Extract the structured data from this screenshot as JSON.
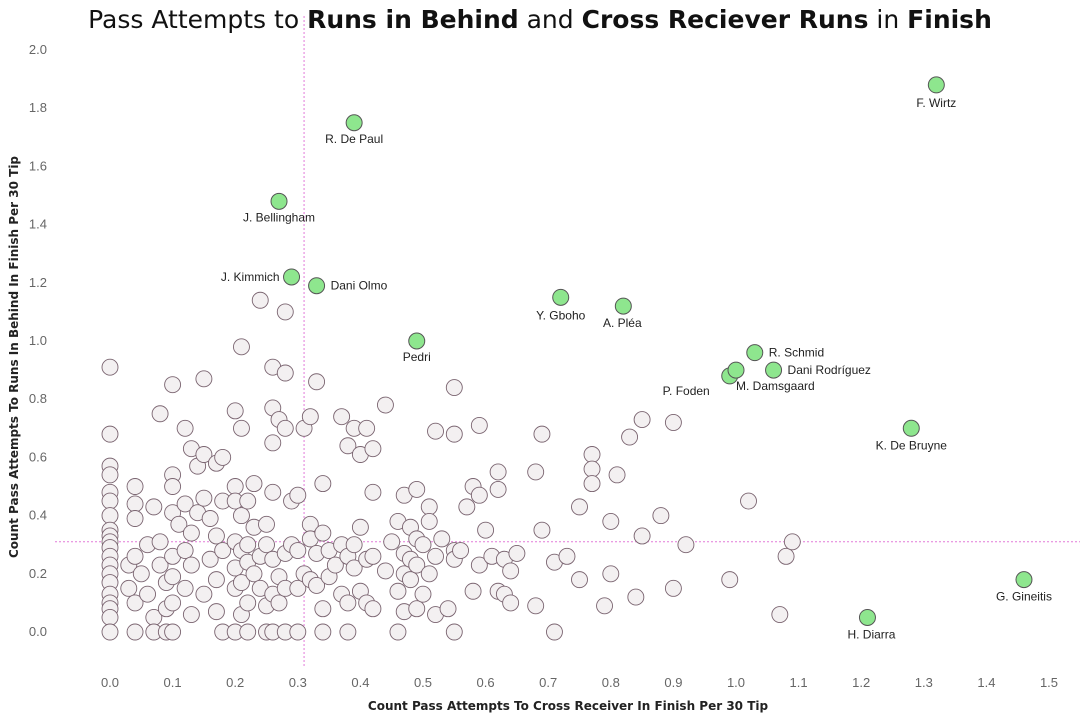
{
  "chart_data": {
    "type": "scatter",
    "title_parts": [
      {
        "text": "Pass Attempts to ",
        "bold": false
      },
      {
        "text": "Runs in Behind",
        "bold": true
      },
      {
        "text": " and ",
        "bold": false
      },
      {
        "text": "Cross Reciever Runs",
        "bold": true
      },
      {
        "text": " in ",
        "bold": false
      },
      {
        "text": "Finish",
        "bold": true
      }
    ],
    "xlabel": "Count Pass Attempts To Cross Receiver In Finish Per 30 Tip",
    "ylabel": "Count Pass Attempts To Runs In Behind In Finish Per 30 Tip",
    "xlim": [
      -0.05,
      1.55
    ],
    "ylim": [
      -0.1,
      2.05
    ],
    "xticks": [
      "0.0",
      "0.1",
      "0.2",
      "0.3",
      "0.4",
      "0.5",
      "0.6",
      "0.7",
      "0.8",
      "0.9",
      "1.0",
      "1.1",
      "1.2",
      "1.3",
      "1.4",
      "1.5"
    ],
    "yticks": [
      "0.0",
      "0.2",
      "0.4",
      "0.6",
      "0.8",
      "1.0",
      "1.2",
      "1.4",
      "1.6",
      "1.8",
      "2.0"
    ],
    "reference_lines": {
      "x": 0.31,
      "y": 0.31
    },
    "colors": {
      "highlight": "#8ee68e",
      "base": "#f3f0f1",
      "stroke": "#7a6470",
      "ref": "#e27ad8"
    },
    "highlighted": [
      {
        "name": "F. Wirtz",
        "x": 1.32,
        "y": 1.88
      },
      {
        "name": "R. De Paul",
        "x": 0.39,
        "y": 1.75
      },
      {
        "name": "J. Bellingham",
        "x": 0.27,
        "y": 1.48
      },
      {
        "name": "J. Kimmich",
        "x": 0.29,
        "y": 1.22
      },
      {
        "name": "Dani Olmo",
        "x": 0.33,
        "y": 1.19
      },
      {
        "name": "Y. Gboho",
        "x": 0.72,
        "y": 1.15
      },
      {
        "name": "A. Pléa",
        "x": 0.82,
        "y": 1.12
      },
      {
        "name": "Pedri",
        "x": 0.49,
        "y": 1.0
      },
      {
        "name": "R. Schmid",
        "x": 1.03,
        "y": 0.96
      },
      {
        "name": "Dani Rodríguez",
        "x": 1.06,
        "y": 0.9
      },
      {
        "name": "P. Foden",
        "x": 0.99,
        "y": 0.88
      },
      {
        "name": "M. Damsgaard",
        "x": 1.0,
        "y": 0.9
      },
      {
        "name": "K. De Bruyne",
        "x": 1.28,
        "y": 0.7
      },
      {
        "name": "G. Gineitis",
        "x": 1.46,
        "y": 0.18
      },
      {
        "name": "H. Diarra",
        "x": 1.21,
        "y": 0.05
      }
    ],
    "others": [
      [
        0.0,
        0.91
      ],
      [
        0.0,
        0.68
      ],
      [
        0.0,
        0.57
      ],
      [
        0.0,
        0.54
      ],
      [
        0.0,
        0.48
      ],
      [
        0.0,
        0.45
      ],
      [
        0.0,
        0.4
      ],
      [
        0.0,
        0.35
      ],
      [
        0.0,
        0.33
      ],
      [
        0.0,
        0.31
      ],
      [
        0.0,
        0.29
      ],
      [
        0.0,
        0.26
      ],
      [
        0.0,
        0.23
      ],
      [
        0.0,
        0.2
      ],
      [
        0.0,
        0.17
      ],
      [
        0.0,
        0.13
      ],
      [
        0.0,
        0.1
      ],
      [
        0.0,
        0.08
      ],
      [
        0.0,
        0.05
      ],
      [
        0.0,
        0.0
      ],
      [
        0.03,
        0.23
      ],
      [
        0.03,
        0.15
      ],
      [
        0.04,
        0.5
      ],
      [
        0.04,
        0.44
      ],
      [
        0.04,
        0.39
      ],
      [
        0.04,
        0.26
      ],
      [
        0.04,
        0.1
      ],
      [
        0.04,
        0.0
      ],
      [
        0.05,
        0.2
      ],
      [
        0.06,
        0.3
      ],
      [
        0.06,
        0.13
      ],
      [
        0.07,
        0.43
      ],
      [
        0.07,
        0.05
      ],
      [
        0.07,
        0.0
      ],
      [
        0.08,
        0.75
      ],
      [
        0.08,
        0.31
      ],
      [
        0.08,
        0.23
      ],
      [
        0.09,
        0.17
      ],
      [
        0.09,
        0.08
      ],
      [
        0.09,
        0.0
      ],
      [
        0.1,
        0.85
      ],
      [
        0.1,
        0.54
      ],
      [
        0.1,
        0.5
      ],
      [
        0.1,
        0.41
      ],
      [
        0.1,
        0.26
      ],
      [
        0.1,
        0.19
      ],
      [
        0.1,
        0.1
      ],
      [
        0.1,
        0.0
      ],
      [
        0.11,
        0.37
      ],
      [
        0.12,
        0.7
      ],
      [
        0.12,
        0.44
      ],
      [
        0.12,
        0.28
      ],
      [
        0.12,
        0.15
      ],
      [
        0.13,
        0.63
      ],
      [
        0.13,
        0.34
      ],
      [
        0.13,
        0.23
      ],
      [
        0.13,
        0.06
      ],
      [
        0.14,
        0.57
      ],
      [
        0.14,
        0.41
      ],
      [
        0.15,
        0.87
      ],
      [
        0.15,
        0.61
      ],
      [
        0.15,
        0.46
      ],
      [
        0.15,
        0.13
      ],
      [
        0.16,
        0.39
      ],
      [
        0.16,
        0.25
      ],
      [
        0.17,
        0.58
      ],
      [
        0.17,
        0.33
      ],
      [
        0.17,
        0.18
      ],
      [
        0.17,
        0.07
      ],
      [
        0.18,
        0.6
      ],
      [
        0.18,
        0.45
      ],
      [
        0.18,
        0.28
      ],
      [
        0.18,
        0.0
      ],
      [
        0.2,
        0.76
      ],
      [
        0.2,
        0.5
      ],
      [
        0.2,
        0.45
      ],
      [
        0.2,
        0.31
      ],
      [
        0.2,
        0.22
      ],
      [
        0.2,
        0.15
      ],
      [
        0.2,
        0.0
      ],
      [
        0.21,
        0.98
      ],
      [
        0.21,
        0.7
      ],
      [
        0.21,
        0.4
      ],
      [
        0.21,
        0.28
      ],
      [
        0.21,
        0.17
      ],
      [
        0.21,
        0.06
      ],
      [
        0.22,
        0.45
      ],
      [
        0.22,
        0.3
      ],
      [
        0.22,
        0.24
      ],
      [
        0.22,
        0.1
      ],
      [
        0.22,
        0.0
      ],
      [
        0.23,
        0.51
      ],
      [
        0.23,
        0.36
      ],
      [
        0.23,
        0.2
      ],
      [
        0.24,
        1.14
      ],
      [
        0.24,
        0.26
      ],
      [
        0.24,
        0.15
      ],
      [
        0.25,
        0.37
      ],
      [
        0.25,
        0.3
      ],
      [
        0.25,
        0.09
      ],
      [
        0.25,
        0.0
      ],
      [
        0.26,
        0.91
      ],
      [
        0.26,
        0.77
      ],
      [
        0.26,
        0.65
      ],
      [
        0.26,
        0.48
      ],
      [
        0.26,
        0.25
      ],
      [
        0.26,
        0.13
      ],
      [
        0.26,
        0.0
      ],
      [
        0.27,
        0.73
      ],
      [
        0.27,
        0.19
      ],
      [
        0.27,
        0.1
      ],
      [
        0.28,
        1.1
      ],
      [
        0.28,
        0.89
      ],
      [
        0.28,
        0.7
      ],
      [
        0.28,
        0.27
      ],
      [
        0.28,
        0.15
      ],
      [
        0.28,
        0.0
      ],
      [
        0.29,
        0.45
      ],
      [
        0.29,
        0.3
      ],
      [
        0.3,
        0.47
      ],
      [
        0.3,
        0.28
      ],
      [
        0.3,
        0.15
      ],
      [
        0.3,
        0.0
      ],
      [
        0.31,
        0.7
      ],
      [
        0.31,
        0.2
      ],
      [
        0.32,
        0.74
      ],
      [
        0.32,
        0.37
      ],
      [
        0.32,
        0.32
      ],
      [
        0.32,
        0.18
      ],
      [
        0.33,
        0.86
      ],
      [
        0.33,
        0.27
      ],
      [
        0.33,
        0.16
      ],
      [
        0.34,
        0.51
      ],
      [
        0.34,
        0.34
      ],
      [
        0.34,
        0.08
      ],
      [
        0.34,
        0.0
      ],
      [
        0.35,
        0.28
      ],
      [
        0.35,
        0.19
      ],
      [
        0.36,
        0.23
      ],
      [
        0.37,
        0.74
      ],
      [
        0.37,
        0.3
      ],
      [
        0.37,
        0.13
      ],
      [
        0.38,
        0.64
      ],
      [
        0.38,
        0.26
      ],
      [
        0.38,
        0.1
      ],
      [
        0.38,
        0.0
      ],
      [
        0.39,
        0.7
      ],
      [
        0.39,
        0.3
      ],
      [
        0.39,
        0.22
      ],
      [
        0.4,
        0.61
      ],
      [
        0.4,
        0.36
      ],
      [
        0.4,
        0.14
      ],
      [
        0.41,
        0.7
      ],
      [
        0.41,
        0.25
      ],
      [
        0.41,
        0.1
      ],
      [
        0.42,
        0.63
      ],
      [
        0.42,
        0.48
      ],
      [
        0.42,
        0.26
      ],
      [
        0.42,
        0.08
      ],
      [
        0.44,
        0.78
      ],
      [
        0.44,
        0.21
      ],
      [
        0.45,
        0.31
      ],
      [
        0.46,
        0.38
      ],
      [
        0.46,
        0.14
      ],
      [
        0.46,
        0.0
      ],
      [
        0.47,
        0.47
      ],
      [
        0.47,
        0.27
      ],
      [
        0.47,
        0.2
      ],
      [
        0.47,
        0.07
      ],
      [
        0.48,
        0.36
      ],
      [
        0.48,
        0.25
      ],
      [
        0.48,
        0.18
      ],
      [
        0.49,
        0.49
      ],
      [
        0.49,
        0.32
      ],
      [
        0.49,
        0.23
      ],
      [
        0.49,
        0.08
      ],
      [
        0.5,
        0.3
      ],
      [
        0.5,
        0.13
      ],
      [
        0.51,
        0.43
      ],
      [
        0.51,
        0.38
      ],
      [
        0.51,
        0.2
      ],
      [
        0.52,
        0.69
      ],
      [
        0.52,
        0.26
      ],
      [
        0.52,
        0.06
      ],
      [
        0.53,
        0.32
      ],
      [
        0.54,
        0.08
      ],
      [
        0.55,
        0.28
      ],
      [
        0.55,
        0.84
      ],
      [
        0.55,
        0.68
      ],
      [
        0.55,
        0.25
      ],
      [
        0.55,
        0.0
      ],
      [
        0.56,
        0.28
      ],
      [
        0.57,
        0.43
      ],
      [
        0.58,
        0.5
      ],
      [
        0.58,
        0.14
      ],
      [
        0.59,
        0.71
      ],
      [
        0.59,
        0.47
      ],
      [
        0.59,
        0.23
      ],
      [
        0.6,
        0.35
      ],
      [
        0.61,
        0.26
      ],
      [
        0.62,
        0.55
      ],
      [
        0.62,
        0.49
      ],
      [
        0.62,
        0.14
      ],
      [
        0.63,
        0.13
      ],
      [
        0.63,
        0.25
      ],
      [
        0.64,
        0.21
      ],
      [
        0.64,
        0.1
      ],
      [
        0.65,
        0.27
      ],
      [
        0.68,
        0.55
      ],
      [
        0.68,
        0.09
      ],
      [
        0.69,
        0.68
      ],
      [
        0.69,
        0.35
      ],
      [
        0.71,
        0.24
      ],
      [
        0.71,
        0.0
      ],
      [
        0.73,
        0.26
      ],
      [
        0.75,
        0.43
      ],
      [
        0.75,
        0.18
      ],
      [
        0.77,
        0.61
      ],
      [
        0.77,
        0.56
      ],
      [
        0.77,
        0.51
      ],
      [
        0.79,
        0.09
      ],
      [
        0.8,
        0.38
      ],
      [
        0.8,
        0.2
      ],
      [
        0.81,
        0.54
      ],
      [
        0.83,
        0.67
      ],
      [
        0.84,
        0.12
      ],
      [
        0.85,
        0.73
      ],
      [
        0.85,
        0.33
      ],
      [
        0.88,
        0.4
      ],
      [
        0.9,
        0.72
      ],
      [
        0.9,
        0.15
      ],
      [
        0.92,
        0.3
      ],
      [
        0.99,
        0.18
      ],
      [
        1.02,
        0.45
      ],
      [
        1.07,
        0.06
      ],
      [
        1.08,
        0.26
      ],
      [
        1.09,
        0.31
      ]
    ]
  }
}
